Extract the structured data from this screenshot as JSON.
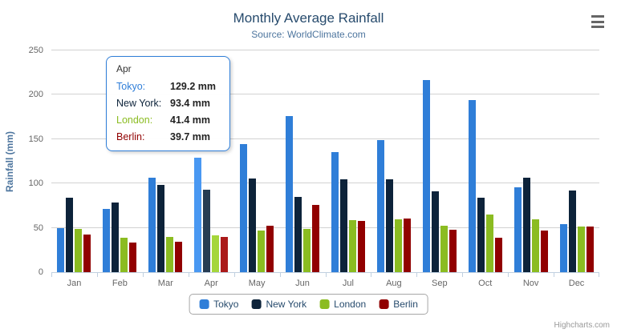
{
  "chart_data": {
    "type": "bar",
    "title": "Monthly Average Rainfall",
    "subtitle": "Source: WorldClimate.com",
    "categories": [
      "Jan",
      "Feb",
      "Mar",
      "Apr",
      "May",
      "Jun",
      "Jul",
      "Aug",
      "Sep",
      "Oct",
      "Nov",
      "Dec"
    ],
    "series": [
      {
        "name": "Tokyo",
        "color": "#2f7ed8",
        "hover_color": "#4998f2",
        "values": [
          49.9,
          71.5,
          106.4,
          129.2,
          144.0,
          176.0,
          135.6,
          148.5,
          216.4,
          194.1,
          95.6,
          54.4
        ]
      },
      {
        "name": "New York",
        "color": "#0d233a",
        "hover_color": "#273d54",
        "values": [
          83.6,
          78.8,
          98.5,
          93.4,
          106.0,
          84.5,
          105.0,
          104.3,
          91.2,
          83.5,
          106.6,
          92.3
        ]
      },
      {
        "name": "London",
        "color": "#8bbc21",
        "hover_color": "#a5d63b",
        "values": [
          48.9,
          38.8,
          39.3,
          41.4,
          47.0,
          48.3,
          59.0,
          59.6,
          52.4,
          65.2,
          59.3,
          51.2
        ]
      },
      {
        "name": "Berlin",
        "color": "#910000",
        "hover_color": "#ab1a1a",
        "values": [
          42.4,
          33.2,
          34.5,
          39.7,
          52.6,
          75.5,
          57.4,
          60.4,
          47.6,
          39.1,
          46.8,
          51.1
        ]
      }
    ],
    "xlabel": "",
    "ylabel": "Rainfall (mm)",
    "ylim": [
      0,
      250
    ],
    "y_ticks": [
      0,
      50,
      100,
      150,
      200,
      250
    ],
    "grid": true,
    "legend_position": "bottom",
    "hovered_category": "Apr",
    "hovered_index": 3
  },
  "tooltip": {
    "header": "Apr",
    "rows": [
      {
        "label": "Tokyo:",
        "value": "129.2 mm",
        "color": "#2f7ed8"
      },
      {
        "label": "New York:",
        "value": "93.4 mm",
        "color": "#0d233a"
      },
      {
        "label": "London:",
        "value": "41.4 mm",
        "color": "#8bbc21"
      },
      {
        "label": "Berlin:",
        "value": "39.7 mm",
        "color": "#910000"
      }
    ],
    "border_color": "#2f7ed8"
  },
  "credits": "Highcharts.com"
}
